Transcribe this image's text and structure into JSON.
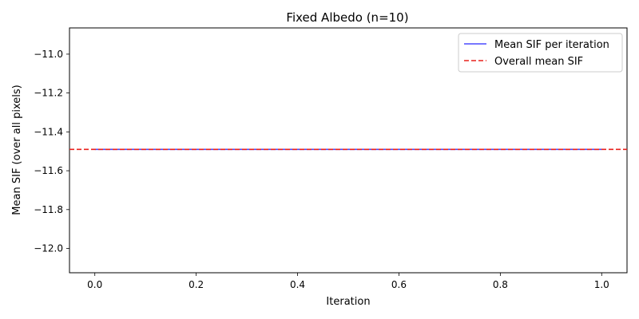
{
  "chart_data": {
    "type": "line",
    "title": "Fixed Albedo (n=10)",
    "xlabel": "Iteration",
    "ylabel": "Mean SIF (over all pixels)",
    "xlim": [
      -0.05,
      1.05
    ],
    "ylim": [
      -12.125,
      -10.865
    ],
    "x_ticks": [
      0.0,
      0.2,
      0.4,
      0.6,
      0.8,
      1.0
    ],
    "x_tick_labels": [
      "0.0",
      "0.2",
      "0.4",
      "0.6",
      "0.8",
      "1.0"
    ],
    "y_ticks": [
      -11.0,
      -11.2,
      -11.4,
      -11.6,
      -11.8,
      -12.0
    ],
    "y_tick_labels": [
      "−11.0",
      "−11.2",
      "−11.4",
      "−11.6",
      "−11.8",
      "−12.0"
    ],
    "series": [
      {
        "name": "Mean SIF per iteration",
        "x": [
          0,
          1
        ],
        "values": [
          -11.49,
          -11.49
        ],
        "color": "#4a4aff",
        "style": "solid"
      },
      {
        "name": "Overall mean SIF",
        "y": -11.49,
        "color": "#e8201c",
        "style": "dashed",
        "kind": "hline"
      }
    ],
    "legend_position": "top-right",
    "grid": false
  }
}
